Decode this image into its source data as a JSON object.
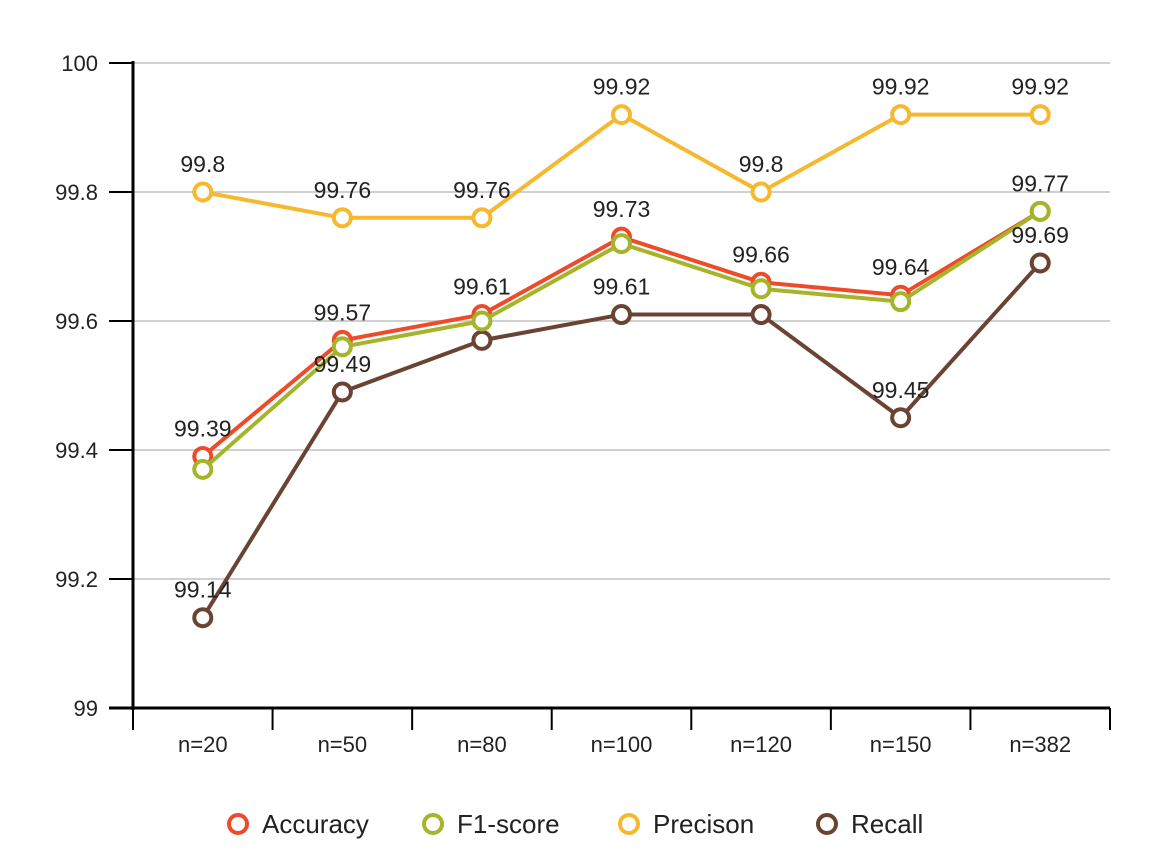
{
  "chart_data": {
    "type": "line",
    "title": "",
    "xlabel": "",
    "ylabel": "",
    "categories": [
      "n=20",
      "n=50",
      "n=80",
      "n=100",
      "n=120",
      "n=150",
      "n=382"
    ],
    "ylim": [
      99,
      100
    ],
    "yticks": [
      "99",
      "99.2",
      "99.4",
      "99.6",
      "99.8",
      "100"
    ],
    "grid": true,
    "legend_position": "bottom",
    "series": [
      {
        "name": "Accuracy",
        "color": "#EE4B2B",
        "values": [
          99.39,
          99.57,
          99.61,
          99.73,
          99.66,
          99.64,
          99.77
        ],
        "labels": [
          "99.39",
          "99.57",
          "99.61",
          "99.73",
          "99.66",
          "99.64",
          "99.77"
        ]
      },
      {
        "name": "F1-score",
        "color": "#A5B52A",
        "values": [
          99.37,
          99.56,
          99.6,
          99.72,
          99.65,
          99.63,
          99.77
        ],
        "labels": []
      },
      {
        "name": "Precison",
        "color": "#F5B82E",
        "values": [
          99.8,
          99.76,
          99.76,
          99.92,
          99.8,
          99.92,
          99.92
        ],
        "labels": [
          "99.8",
          "99.76",
          "99.76",
          "99.92",
          "99.8",
          "99.92",
          "99.92"
        ]
      },
      {
        "name": "Recall",
        "color": "#6B4332",
        "values": [
          99.14,
          99.49,
          99.57,
          99.61,
          99.61,
          99.45,
          99.69
        ],
        "labels": [
          "99.14",
          "99.49",
          "",
          "99.61",
          "",
          "99.45",
          "99.69"
        ]
      }
    ]
  }
}
